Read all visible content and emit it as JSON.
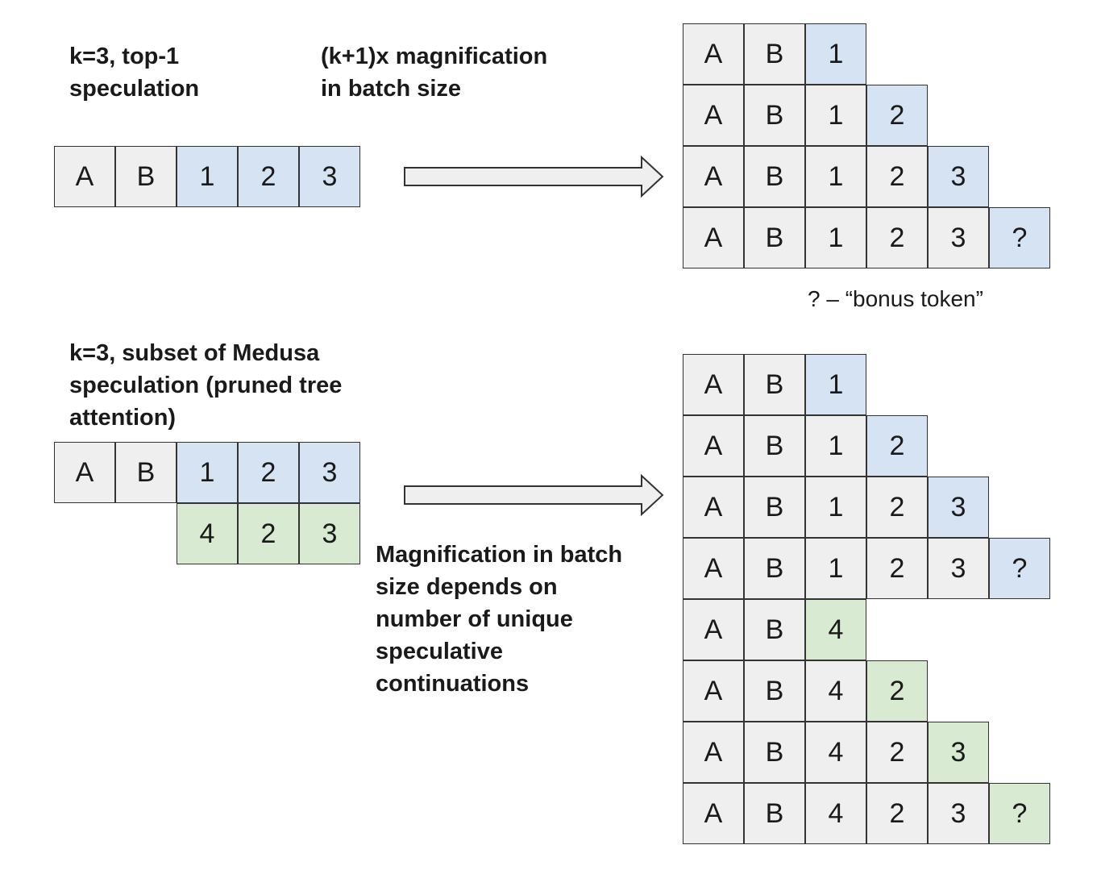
{
  "colors": {
    "context": "#efefef",
    "path1": "#d5e3f3",
    "path2": "#d9ead3",
    "stroke": "#333333"
  },
  "top": {
    "label": "k=3, top-1\nspeculation",
    "magnification": "(k+1)x magnification\nin batch size",
    "input": [
      [
        {
          "t": "A",
          "c": "context"
        },
        {
          "t": "B",
          "c": "context"
        },
        {
          "t": "1",
          "c": "path1"
        },
        {
          "t": "2",
          "c": "path1"
        },
        {
          "t": "3",
          "c": "path1"
        }
      ]
    ],
    "batch": [
      [
        {
          "t": "A",
          "c": "context"
        },
        {
          "t": "B",
          "c": "context"
        },
        {
          "t": "1",
          "c": "path1"
        }
      ],
      [
        {
          "t": "A",
          "c": "context"
        },
        {
          "t": "B",
          "c": "context"
        },
        {
          "t": "1",
          "c": "context"
        },
        {
          "t": "2",
          "c": "path1"
        }
      ],
      [
        {
          "t": "A",
          "c": "context"
        },
        {
          "t": "B",
          "c": "context"
        },
        {
          "t": "1",
          "c": "context"
        },
        {
          "t": "2",
          "c": "context"
        },
        {
          "t": "3",
          "c": "path1"
        }
      ],
      [
        {
          "t": "A",
          "c": "context"
        },
        {
          "t": "B",
          "c": "context"
        },
        {
          "t": "1",
          "c": "context"
        },
        {
          "t": "2",
          "c": "context"
        },
        {
          "t": "3",
          "c": "context"
        },
        {
          "t": "?",
          "c": "path1"
        }
      ]
    ],
    "bonus_note": "? – “bonus token”"
  },
  "bottom": {
    "label": "k=3, subset of Medusa\nspeculation (pruned tree\nattention)",
    "magnification": "Magnification in batch\nsize depends on\nnumber of unique\nspeculative\ncontinuations",
    "input": [
      [
        {
          "t": "A",
          "c": "context"
        },
        {
          "t": "B",
          "c": "context"
        },
        {
          "t": "1",
          "c": "path1"
        },
        {
          "t": "2",
          "c": "path1"
        },
        {
          "t": "3",
          "c": "path1"
        }
      ],
      [
        null,
        null,
        {
          "t": "4",
          "c": "path2"
        },
        {
          "t": "2",
          "c": "path2"
        },
        {
          "t": "3",
          "c": "path2"
        }
      ]
    ],
    "batch": [
      [
        {
          "t": "A",
          "c": "context"
        },
        {
          "t": "B",
          "c": "context"
        },
        {
          "t": "1",
          "c": "path1"
        }
      ],
      [
        {
          "t": "A",
          "c": "context"
        },
        {
          "t": "B",
          "c": "context"
        },
        {
          "t": "1",
          "c": "context"
        },
        {
          "t": "2",
          "c": "path1"
        }
      ],
      [
        {
          "t": "A",
          "c": "context"
        },
        {
          "t": "B",
          "c": "context"
        },
        {
          "t": "1",
          "c": "context"
        },
        {
          "t": "2",
          "c": "context"
        },
        {
          "t": "3",
          "c": "path1"
        }
      ],
      [
        {
          "t": "A",
          "c": "context"
        },
        {
          "t": "B",
          "c": "context"
        },
        {
          "t": "1",
          "c": "context"
        },
        {
          "t": "2",
          "c": "context"
        },
        {
          "t": "3",
          "c": "context"
        },
        {
          "t": "?",
          "c": "path1"
        }
      ],
      [
        {
          "t": "A",
          "c": "context"
        },
        {
          "t": "B",
          "c": "context"
        },
        {
          "t": "4",
          "c": "path2"
        }
      ],
      [
        {
          "t": "A",
          "c": "context"
        },
        {
          "t": "B",
          "c": "context"
        },
        {
          "t": "4",
          "c": "context"
        },
        {
          "t": "2",
          "c": "path2"
        }
      ],
      [
        {
          "t": "A",
          "c": "context"
        },
        {
          "t": "B",
          "c": "context"
        },
        {
          "t": "4",
          "c": "context"
        },
        {
          "t": "2",
          "c": "context"
        },
        {
          "t": "3",
          "c": "path2"
        }
      ],
      [
        {
          "t": "A",
          "c": "context"
        },
        {
          "t": "B",
          "c": "context"
        },
        {
          "t": "4",
          "c": "context"
        },
        {
          "t": "2",
          "c": "context"
        },
        {
          "t": "3",
          "c": "context"
        },
        {
          "t": "?",
          "c": "path2"
        }
      ]
    ]
  }
}
